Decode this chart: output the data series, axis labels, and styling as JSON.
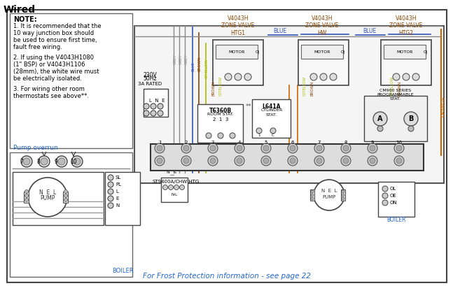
{
  "title": "Wired",
  "bg": "#ffffff",
  "note_lines": [
    "NOTE:",
    "1. It is recommended that the",
    "10 way junction box should",
    "be used to ensure first time,",
    "fault free wiring.",
    " ",
    "2. If using the V4043H1080",
    "(1\" BSP) or V4043H1106",
    "(28mm), the white wire must",
    "be electrically isolated.",
    " ",
    "3. For wiring other room",
    "thermostats see above**."
  ],
  "pump_overrun": "Pump overrun",
  "footer": "For Frost Protection information - see page 22",
  "grey": "#888888",
  "blue": "#3355bb",
  "brown": "#884400",
  "gyellow": "#aabb00",
  "orange": "#cc6600",
  "black": "#222222",
  "dkgrey": "#555555",
  "ltgrey": "#cccccc",
  "ltblue": "#2266cc"
}
